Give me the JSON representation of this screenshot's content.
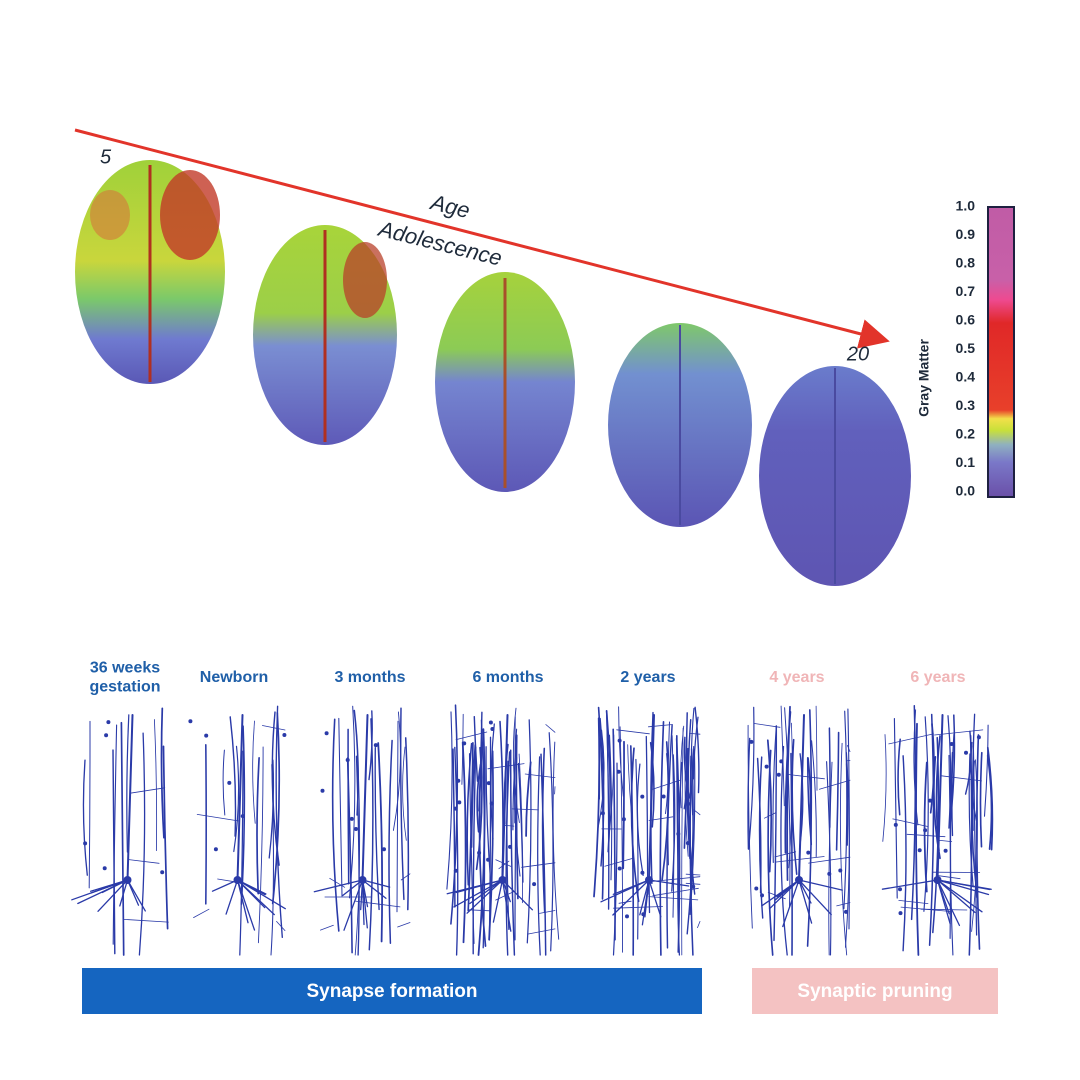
{
  "age_arrow": {
    "start": "5",
    "end": "20",
    "label": "Age",
    "sublabel": "Adolescence"
  },
  "colorbar": {
    "label": "Gray Matter",
    "ticks": [
      "0.0",
      "0.1",
      "0.2",
      "0.3",
      "0.4",
      "0.5",
      "0.6",
      "0.7",
      "0.8",
      "0.9",
      "1.0"
    ]
  },
  "stages": [
    {
      "label": [
        "36 weeks",
        "gestation"
      ]
    },
    {
      "label": [
        "Newborn"
      ]
    },
    {
      "label": [
        "3 months"
      ]
    },
    {
      "label": [
        "6 months"
      ]
    },
    {
      "label": [
        "2 years"
      ]
    },
    {
      "label": [
        "4 years"
      ]
    },
    {
      "label": [
        "6 years"
      ]
    }
  ],
  "phases": {
    "formation": "Synapse formation",
    "pruning": "Synaptic pruning"
  }
}
